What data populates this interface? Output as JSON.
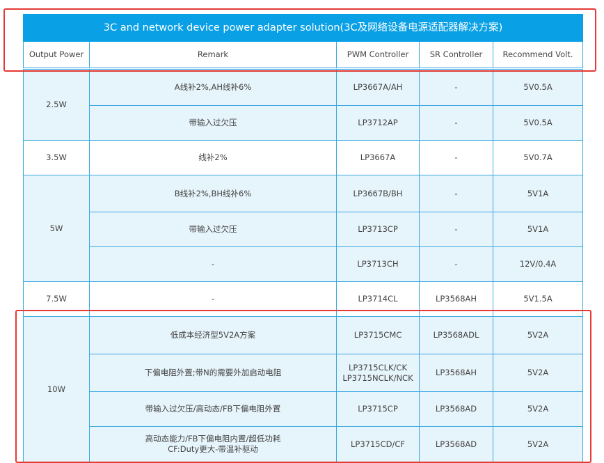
{
  "title": "3C and network device power adapter solution(3C及网络设备电源适配器解决方案)",
  "headers": [
    "Output Power",
    "Remark",
    "PWM Controller",
    "SR Controller",
    "Recommend Volt."
  ],
  "groups": [
    {
      "power": "2.5W",
      "rows": [
        {
          "remark": "A线补2%,AH线补6%",
          "pwm": "LP3667A/AH",
          "sr": "-",
          "volt": "5V0.5A"
        },
        {
          "remark": "带输入过欠压",
          "pwm": "LP3712AP",
          "sr": "-",
          "volt": "5V0.5A"
        }
      ]
    },
    {
      "power": "3.5W",
      "rows": [
        {
          "remark": "线补2%",
          "pwm": "LP3667A",
          "sr": "-",
          "volt": "5V0.7A"
        }
      ]
    },
    {
      "power": "5W",
      "rows": [
        {
          "remark": "B线补2%,BH线补6%",
          "pwm": "LP3667B/BH",
          "sr": "-",
          "volt": "5V1A"
        },
        {
          "remark": "带输入过欠压",
          "pwm": "LP3713CP",
          "sr": "-",
          "volt": "5V1A"
        },
        {
          "remark": "-",
          "pwm": "LP3713CH",
          "sr": "-",
          "volt": "12V/0.4A"
        }
      ]
    },
    {
      "power": "7.5W",
      "rows": [
        {
          "remark": "-",
          "pwm": "LP3714CL",
          "sr": "LP3568AH",
          "volt": "5V1.5A"
        }
      ]
    },
    {
      "power": "10W",
      "rows": [
        {
          "remark": "低成本经济型5V2A方案",
          "pwm": "LP3715CMC",
          "sr": "LP3568ADL",
          "volt": "5V2A"
        },
        {
          "remark": "下偏电阻外置;带N的需要外加启动电阻",
          "pwm": "LP3715CLK/CK\nLP3715NCLK/NCK",
          "sr": "LP3568AH",
          "volt": "5V2A"
        },
        {
          "remark": "带输入过欠压/高动态/FB下偏电阻外置",
          "pwm": "LP3715CP",
          "sr": "LP3568AD",
          "volt": "5V2A"
        },
        {
          "remark": "高动态能力/FB下偏电阻内置/超低功耗\nCF:Duty更大-带温补驱动",
          "pwm": "LP3715CD/CF",
          "sr": "LP3568AD",
          "volt": "5V2A"
        }
      ]
    }
  ],
  "colors": {
    "header": "#0aa0e6",
    "row_blue": "#e6f4fb",
    "border": "#3aa8e0",
    "highlight": "#e53935"
  }
}
